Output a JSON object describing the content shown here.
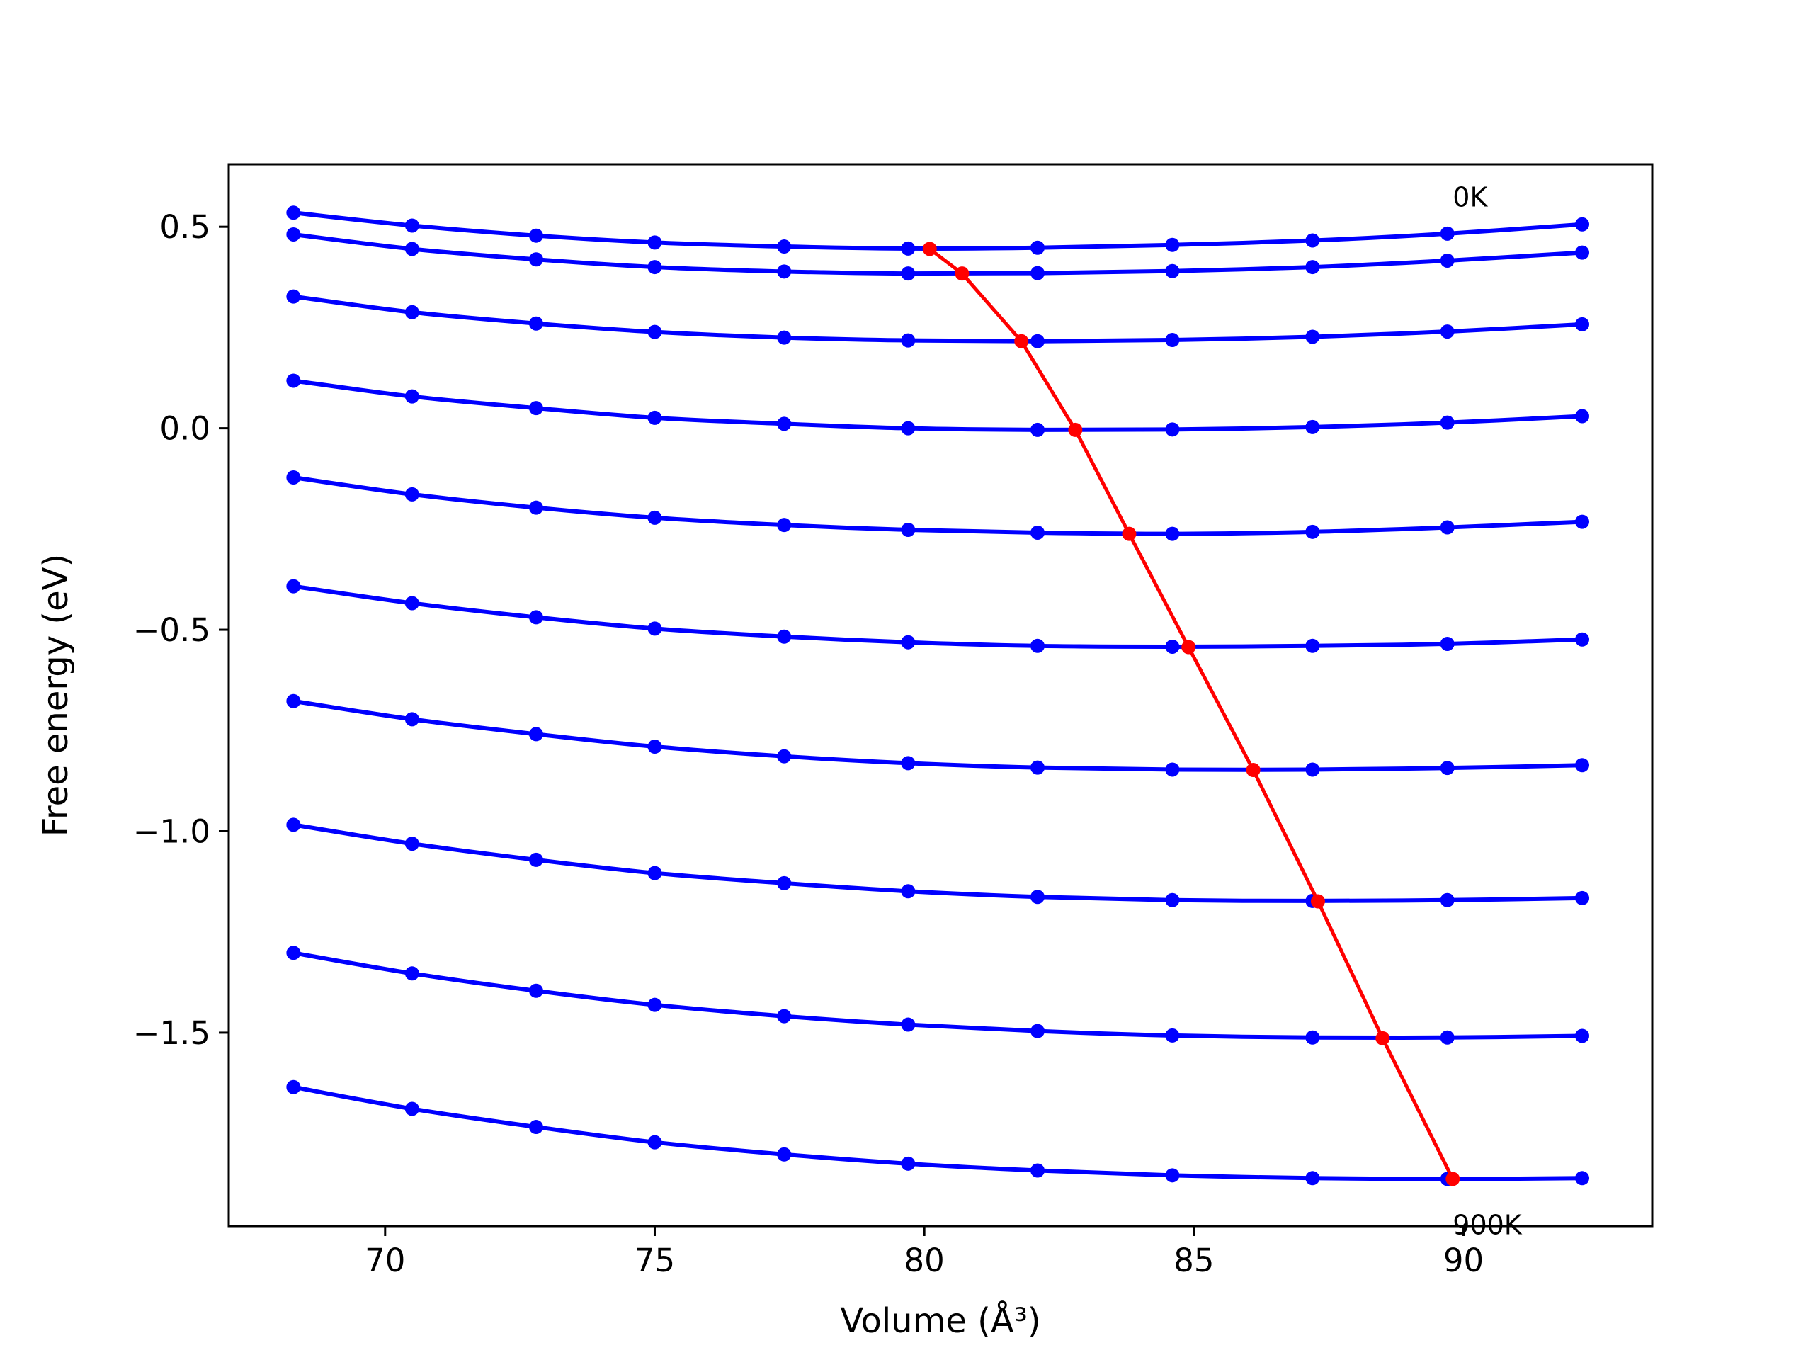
{
  "chart_data": {
    "type": "line",
    "xlabel": "Volume (Å³)",
    "ylabel": "Free energy (eV)",
    "xlim": [
      67.1,
      93.5
    ],
    "ylim": [
      -1.98,
      0.655
    ],
    "xticks": [
      70,
      75,
      80,
      85,
      90
    ],
    "xtick_labels": [
      "70",
      "75",
      "80",
      "85",
      "90"
    ],
    "yticks": [
      0.5,
      0.0,
      -0.5,
      -1.0,
      -1.5
    ],
    "ytick_labels": [
      "0.5",
      "0.0",
      "−0.5",
      "−1.0",
      "−1.5"
    ],
    "grid": false,
    "x": [
      68.3,
      70.5,
      72.8,
      75.0,
      77.4,
      79.7,
      82.1,
      84.6,
      87.2,
      89.7,
      92.2
    ],
    "series": [
      {
        "color": "#0000ff",
        "values": [
          0.535,
          0.503,
          0.478,
          0.461,
          0.451,
          0.446,
          0.448,
          0.455,
          0.466,
          0.483,
          0.506
        ]
      },
      {
        "color": "#0000ff",
        "values": [
          0.481,
          0.445,
          0.419,
          0.4,
          0.389,
          0.384,
          0.385,
          0.39,
          0.4,
          0.416,
          0.436
        ]
      },
      {
        "color": "#0000ff",
        "values": [
          0.327,
          0.288,
          0.26,
          0.239,
          0.225,
          0.218,
          0.216,
          0.219,
          0.227,
          0.24,
          0.258
        ]
      },
      {
        "color": "#0000ff",
        "values": [
          0.118,
          0.079,
          0.05,
          0.026,
          0.011,
          0.0,
          -0.004,
          -0.003,
          0.003,
          0.014,
          0.03
        ]
      },
      {
        "color": "#0000ff",
        "values": [
          -0.122,
          -0.164,
          -0.197,
          -0.222,
          -0.24,
          -0.252,
          -0.259,
          -0.262,
          -0.257,
          -0.246,
          -0.232
        ]
      },
      {
        "color": "#0000ff",
        "values": [
          -0.392,
          -0.434,
          -0.469,
          -0.497,
          -0.517,
          -0.531,
          -0.54,
          -0.542,
          -0.54,
          -0.535,
          -0.524
        ]
      },
      {
        "color": "#0000ff",
        "values": [
          -0.677,
          -0.722,
          -0.759,
          -0.79,
          -0.814,
          -0.831,
          -0.842,
          -0.847,
          -0.847,
          -0.843,
          -0.836
        ]
      },
      {
        "color": "#0000ff",
        "values": [
          -0.984,
          -1.031,
          -1.071,
          -1.104,
          -1.129,
          -1.149,
          -1.163,
          -1.171,
          -1.173,
          -1.171,
          -1.166
        ]
      },
      {
        "color": "#0000ff",
        "values": [
          -1.302,
          -1.353,
          -1.396,
          -1.431,
          -1.459,
          -1.48,
          -1.496,
          -1.507,
          -1.512,
          -1.512,
          -1.508
        ]
      },
      {
        "color": "#0000ff",
        "values": [
          -1.635,
          -1.689,
          -1.734,
          -1.772,
          -1.802,
          -1.825,
          -1.842,
          -1.854,
          -1.861,
          -1.863,
          -1.861
        ]
      }
    ],
    "minimum_path": {
      "color": "#ff0000",
      "x": [
        80.1,
        80.7,
        81.8,
        82.8,
        83.8,
        84.9,
        86.1,
        87.3,
        88.5,
        89.8
      ],
      "y": [
        0.445,
        0.384,
        0.216,
        -0.004,
        -0.262,
        -0.543,
        -0.848,
        -1.174,
        -1.514,
        -1.863
      ]
    },
    "annotations": [
      {
        "text": "0K",
        "x": 89.8,
        "y": 0.55
      },
      {
        "text": "900K",
        "x": 89.8,
        "y": -2.0
      }
    ]
  }
}
